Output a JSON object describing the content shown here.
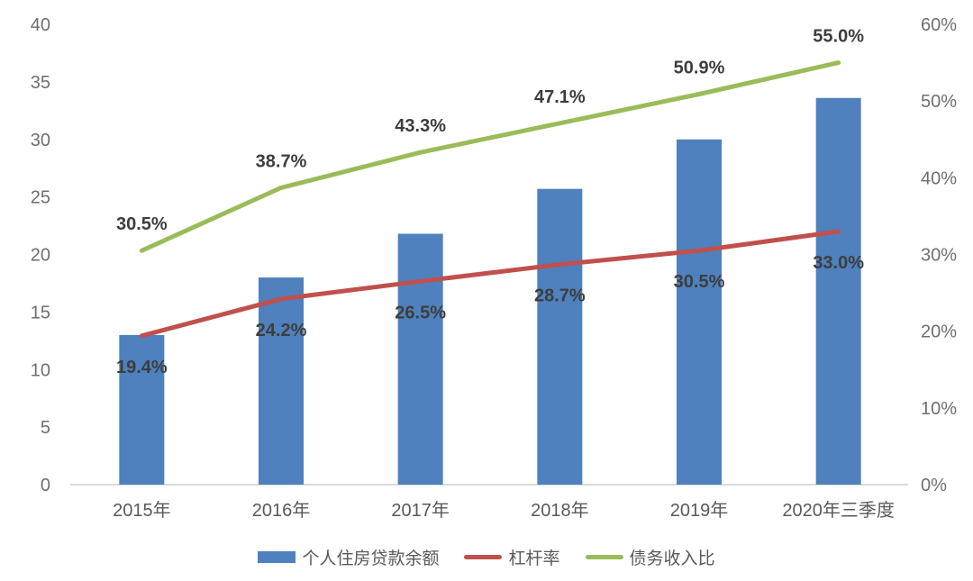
{
  "chart_data": {
    "type": "bar",
    "subtype": "combo-bar-line",
    "title": "",
    "categories": [
      "2015年",
      "2016年",
      "2017年",
      "2018年",
      "2019年",
      "2020年三季度"
    ],
    "bar_series": {
      "name": "个人住房贷款余额",
      "axis": "left",
      "color": "#4e81bd",
      "values": [
        13,
        18,
        21.8,
        25.7,
        30,
        33.6
      ]
    },
    "line_series": [
      {
        "name": "杠杆率",
        "axis": "right",
        "color": "#c0504d",
        "values_pct": [
          19.4,
          24.2,
          26.5,
          28.7,
          30.5,
          33.0
        ],
        "labels": [
          "19.4%",
          "24.2%",
          "26.5%",
          "28.7%",
          "30.5%",
          "33.0%"
        ],
        "label_position": "below"
      },
      {
        "name": "债务收入比",
        "axis": "right",
        "color": "#9bbb59",
        "values_pct": [
          30.5,
          38.7,
          43.3,
          47.1,
          50.9,
          55.0
        ],
        "labels": [
          "30.5%",
          "38.7%",
          "43.3%",
          "47.1%",
          "50.9%",
          "55.0%"
        ],
        "label_position": "above"
      }
    ],
    "left_axis": {
      "min": 0,
      "max": 40,
      "step": 5,
      "ticks": [
        "0",
        "5",
        "10",
        "15",
        "20",
        "25",
        "30",
        "35",
        "40"
      ]
    },
    "right_axis": {
      "min": 0,
      "max": 60,
      "step": 10,
      "ticks": [
        "0%",
        "10%",
        "20%",
        "30%",
        "40%",
        "50%",
        "60%"
      ]
    },
    "grid": false,
    "legend_position": "bottom",
    "legend": [
      {
        "label": "个人住房贷款余额",
        "swatch": "bar",
        "color": "#4e81bd"
      },
      {
        "label": "杠杆率",
        "swatch": "line",
        "color": "#c0504d"
      },
      {
        "label": "债务收入比",
        "swatch": "line",
        "color": "#9bbb59"
      }
    ],
    "colors": {
      "bar": "#4e81bd",
      "leverage_line": "#c0504d",
      "dti_line": "#9bbb59",
      "axis_tick_text": "#6e6e6e",
      "category_text": "#595959",
      "data_label_text": "#3d3d3d",
      "baseline": "#d9d9d9",
      "background": "#ffffff"
    }
  }
}
